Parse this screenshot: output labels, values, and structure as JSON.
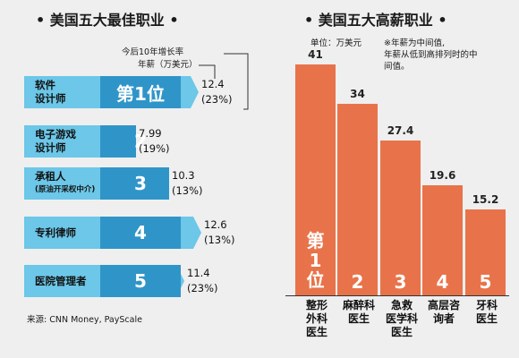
{
  "left": {
    "title": "• 美国五大最佳职业 •",
    "legend_line1": "今后10年增长率",
    "legend_line2": "年薪（万美元）",
    "source": "来源: CNN Money, PayScale"
  },
  "right": {
    "title": "• 美国五大高薪职业 •",
    "unit": "单位：万美元",
    "note_line1": "※年薪为中间值,",
    "note_line2": "年薪从低到高排列时的中",
    "note_line3": "间值。"
  },
  "chart_data": [
    {
      "type": "bar",
      "orientation": "horizontal",
      "title": "• 美国五大最佳职业 •",
      "categories": [
        "软件设计师",
        "电子游戏设计师",
        "承租人(原油开采权中介)",
        "专利律师",
        "医院管理者"
      ],
      "ranks": [
        "第1位",
        "2",
        "3",
        "4",
        "5"
      ],
      "series": [
        {
          "name": "年薪（万美元）",
          "values": [
            12.4,
            7.99,
            10.3,
            12.6,
            11.4
          ]
        },
        {
          "name": "今后10年增长率",
          "values": [
            "(23%)",
            "(19%)",
            "(13%)",
            "(13%)",
            "(23%)"
          ]
        }
      ],
      "rows": [
        {
          "occ_line1": "软件",
          "occ_line2": "设计师",
          "occ_sub": "",
          "rank": "第1位",
          "salary": 12.4,
          "salary_text": "12.4",
          "growth": "(23%)"
        },
        {
          "occ_line1": "电子游戏",
          "occ_line2": "设计师",
          "occ_sub": "",
          "rank": "2",
          "salary": 7.99,
          "salary_text": "7.99",
          "growth": "(19%)"
        },
        {
          "occ_line1": "承租人",
          "occ_line2": "",
          "occ_sub": "(原油开采权中介)",
          "rank": "3",
          "salary": 10.3,
          "salary_text": "10.3",
          "growth": "(13%)"
        },
        {
          "occ_line1": "专利律师",
          "occ_line2": "",
          "occ_sub": "",
          "rank": "4",
          "salary": 12.6,
          "salary_text": "12.6",
          "growth": "(13%)"
        },
        {
          "occ_line1": "医院管理者",
          "occ_line2": "",
          "occ_sub": "",
          "rank": "5",
          "salary": 11.4,
          "salary_text": "11.4",
          "growth": "(23%)"
        }
      ],
      "colors": {
        "bar": "#6cc7e8",
        "rank_box": "#2f95c8"
      }
    },
    {
      "type": "bar",
      "orientation": "vertical",
      "title": "• 美国五大高薪职业 •",
      "ylabel": "单位：万美元",
      "categories": [
        "整形外科医生",
        "麻醉科医生",
        "急救医学科医生",
        "高层咨询者",
        "牙科医生"
      ],
      "values": [
        41,
        34,
        27.4,
        19.6,
        15.2
      ],
      "value_labels": [
        "41",
        "34",
        "27.4",
        "19.6",
        "15.2"
      ],
      "ranks": [
        "第1位",
        "2",
        "3",
        "4",
        "5"
      ],
      "label_lines": [
        [
          "整形",
          "外科",
          "医生"
        ],
        [
          "麻醉科",
          "医生"
        ],
        [
          "急救",
          "医学科",
          "医生"
        ],
        [
          "高层咨",
          "询者"
        ],
        [
          "牙科",
          "医生"
        ]
      ],
      "colors": {
        "bar": "#e8734a"
      }
    }
  ]
}
